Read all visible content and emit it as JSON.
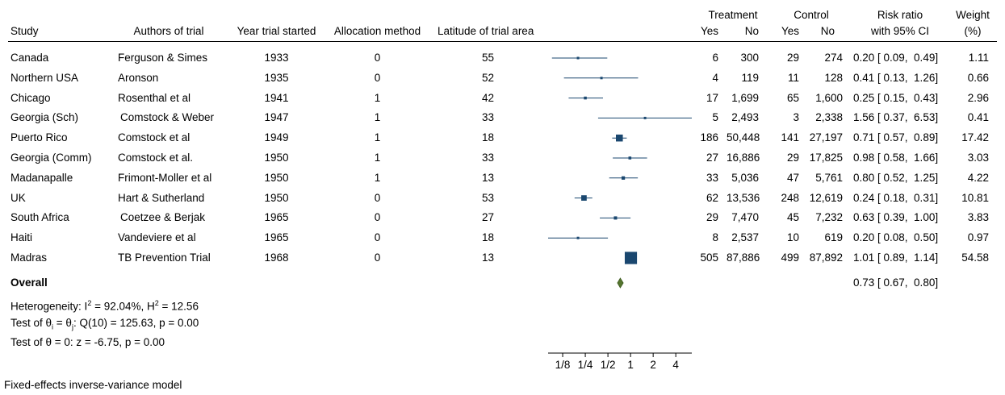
{
  "header": {
    "study": "Study",
    "authors": "Authors of trial",
    "year": "Year trial started",
    "allocation": "Allocation method",
    "latitude": "Latitude of trial area",
    "treatment": "Treatment",
    "control": "Control",
    "yes": "Yes",
    "no": "No",
    "rr_line1": "Risk ratio",
    "rr_line2": "with 95% CI",
    "weight_line1": "Weight",
    "weight_line2": "(%)"
  },
  "rows": [
    {
      "study": "Canada",
      "authors": "Ferguson & Simes",
      "year": "1933",
      "alloc": "0",
      "lat": "55",
      "t_yes": "6",
      "t_no": "300",
      "c_yes": "29",
      "c_no": "274",
      "rr": "0.20 [ 0.09,  0.49]",
      "weight": "1.11"
    },
    {
      "study": "Northern USA",
      "authors": "Aronson",
      "year": "1935",
      "alloc": "0",
      "lat": "52",
      "t_yes": "4",
      "t_no": "119",
      "c_yes": "11",
      "c_no": "128",
      "rr": "0.41 [ 0.13,  1.26]",
      "weight": "0.66"
    },
    {
      "study": "Chicago",
      "authors": "Rosenthal et al",
      "year": "1941",
      "alloc": "1",
      "lat": "42",
      "t_yes": "17",
      "t_no": "1,699",
      "c_yes": "65",
      "c_no": "1,600",
      "rr": "0.25 [ 0.15,  0.43]",
      "weight": "2.96"
    },
    {
      "study": "Georgia (Sch)",
      "authors": "Comstock & Weber",
      "year": "1947",
      "alloc": "1",
      "lat": "33",
      "t_yes": "5",
      "t_no": "2,493",
      "c_yes": "3",
      "c_no": "2,338",
      "rr": "1.56 [ 0.37,  6.53]",
      "weight": "0.41"
    },
    {
      "study": "Puerto Rico",
      "authors": "Comstock et al",
      "year": "1949",
      "alloc": "1",
      "lat": "18",
      "t_yes": "186",
      "t_no": "50,448",
      "c_yes": "141",
      "c_no": "27,197",
      "rr": "0.71 [ 0.57,  0.89]",
      "weight": "17.42"
    },
    {
      "study": "Georgia (Comm)",
      "authors": "Comstock et al.",
      "year": "1950",
      "alloc": "1",
      "lat": "33",
      "t_yes": "27",
      "t_no": "16,886",
      "c_yes": "29",
      "c_no": "17,825",
      "rr": "0.98 [ 0.58,  1.66]",
      "weight": "3.03"
    },
    {
      "study": "Madanapalle",
      "authors": "Frimont-Moller et al",
      "year": "1950",
      "alloc": "1",
      "lat": "13",
      "t_yes": "33",
      "t_no": "5,036",
      "c_yes": "47",
      "c_no": "5,761",
      "rr": "0.80 [ 0.52,  1.25]",
      "weight": "4.22"
    },
    {
      "study": "UK",
      "authors": "Hart & Sutherland",
      "year": "1950",
      "alloc": "0",
      "lat": "53",
      "t_yes": "62",
      "t_no": "13,536",
      "c_yes": "248",
      "c_no": "12,619",
      "rr": "0.24 [ 0.18,  0.31]",
      "weight": "10.81"
    },
    {
      "study": "South Africa",
      "authors": "Coetzee & Berjak",
      "year": "1965",
      "alloc": "0",
      "lat": "27",
      "t_yes": "29",
      "t_no": "7,470",
      "c_yes": "45",
      "c_no": "7,232",
      "rr": "0.63 [ 0.39,  1.00]",
      "weight": "3.83"
    },
    {
      "study": "Haiti",
      "authors": "Vandeviere et al",
      "year": "1965",
      "alloc": "0",
      "lat": "18",
      "t_yes": "8",
      "t_no": "2,537",
      "c_yes": "10",
      "c_no": "619",
      "rr": "0.20 [ 0.08,  0.50]",
      "weight": "0.97"
    },
    {
      "study": "Madras",
      "authors": "TB Prevention Trial",
      "year": "1968",
      "alloc": "0",
      "lat": "13",
      "t_yes": "505",
      "t_no": "87,886",
      "c_yes": "499",
      "c_no": "87,892",
      "rr": "1.01 [ 0.89,  1.14]",
      "weight": "54.58"
    }
  ],
  "overall": {
    "label": "Overall",
    "rr": "0.73 [ 0.67,  0.80]"
  },
  "stats": {
    "heterogeneity_pre": "Heterogeneity: I",
    "heterogeneity_sup": "2",
    "heterogeneity_mid": " = 92.04%, H",
    "heterogeneity_sup2": "2",
    "heterogeneity_post": " = 12.56",
    "test_theta_i": "Test of θ",
    "test_theta_i_sub1": "i",
    "test_theta_i_mid": " = θ",
    "test_theta_i_sub2": "j",
    "test_theta_i_post": ": Q(10) = 125.63, p = 0.00",
    "test_theta_zero": "Test of θ = 0: z = -6.75, p = 0.00"
  },
  "footnote": "Fixed-effects inverse-variance model",
  "colors": {
    "marker": "#1a476f",
    "diamond": "#55752f",
    "diamond_stroke": "#3d5a1f"
  },
  "chart_data": {
    "type": "forest",
    "x_scale": "log",
    "xlim": [
      0.08,
      6.53
    ],
    "ticks": [
      0.125,
      0.25,
      0.5,
      1,
      2,
      4
    ],
    "tick_labels": [
      "1/8",
      "1/4",
      "1/2",
      "1",
      "2",
      "4"
    ],
    "points": [
      {
        "rr": 0.2,
        "lo": 0.09,
        "hi": 0.49,
        "weight": 1.11
      },
      {
        "rr": 0.41,
        "lo": 0.13,
        "hi": 1.26,
        "weight": 0.66
      },
      {
        "rr": 0.25,
        "lo": 0.15,
        "hi": 0.43,
        "weight": 2.96
      },
      {
        "rr": 1.56,
        "lo": 0.37,
        "hi": 6.53,
        "weight": 0.41
      },
      {
        "rr": 0.71,
        "lo": 0.57,
        "hi": 0.89,
        "weight": 17.42
      },
      {
        "rr": 0.98,
        "lo": 0.58,
        "hi": 1.66,
        "weight": 3.03
      },
      {
        "rr": 0.8,
        "lo": 0.52,
        "hi": 1.25,
        "weight": 4.22
      },
      {
        "rr": 0.24,
        "lo": 0.18,
        "hi": 0.31,
        "weight": 10.81
      },
      {
        "rr": 0.63,
        "lo": 0.39,
        "hi": 1.0,
        "weight": 3.83
      },
      {
        "rr": 0.2,
        "lo": 0.08,
        "hi": 0.5,
        "weight": 0.97
      },
      {
        "rr": 1.01,
        "lo": 0.89,
        "hi": 1.14,
        "weight": 54.58
      }
    ],
    "overall": {
      "rr": 0.73,
      "lo": 0.67,
      "hi": 0.8
    }
  }
}
